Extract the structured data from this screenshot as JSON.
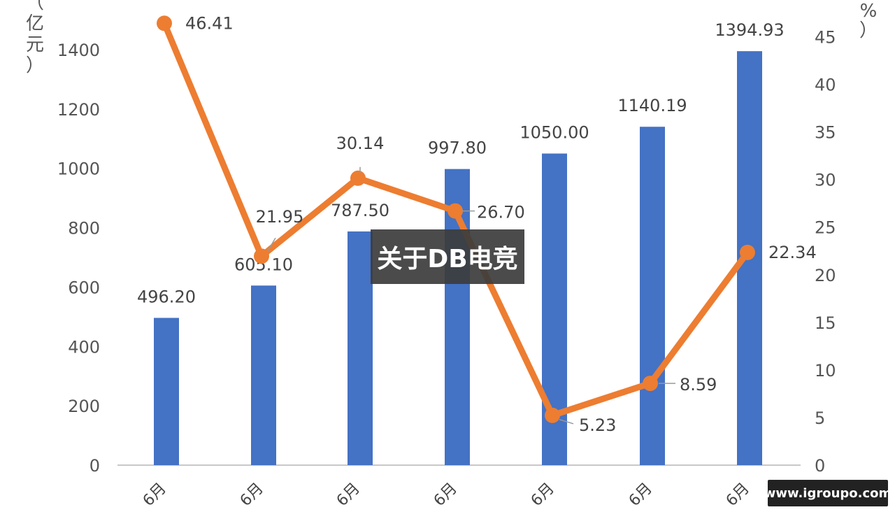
{
  "overlay_text": "关于DB电竞",
  "watermark_text": "www.igroupo.com",
  "chart_data": {
    "type": "bar",
    "categories": [
      "6月",
      "6月",
      "6月",
      "6月",
      "6月",
      "6月",
      "6月"
    ],
    "x_tick_prefix": "",
    "series": [
      {
        "type": "bar",
        "axis": "left",
        "values": [
          496.2,
          605.1,
          787.5,
          997.8,
          1050.0,
          1140.19,
          1394.93
        ],
        "labels": [
          "496.20",
          "605.10",
          "787.50",
          "997.80",
          "1050.00",
          "1140.19",
          "1394.93"
        ],
        "color": "#4472C4"
      },
      {
        "type": "line",
        "axis": "right",
        "values": [
          46.41,
          21.95,
          30.14,
          26.7,
          5.23,
          8.59,
          22.34
        ],
        "labels": [
          "46.41",
          "21.95",
          "30.14",
          "26.70",
          "5.23",
          "8.59",
          "22.34"
        ],
        "color": "#ED7D31"
      }
    ],
    "y_left": {
      "unit_label": [
        "（",
        "亿",
        "元",
        "）"
      ],
      "ylim": [
        0,
        1400
      ],
      "ticks": [
        0,
        200,
        400,
        600,
        800,
        1000,
        1200,
        1400
      ]
    },
    "y_right": {
      "unit_label": [
        "%",
        "）"
      ],
      "ylim": [
        0,
        45
      ],
      "ticks": [
        0,
        5,
        10,
        15,
        20,
        25,
        30,
        35,
        40,
        45
      ]
    },
    "grid": false,
    "legend": "none"
  }
}
